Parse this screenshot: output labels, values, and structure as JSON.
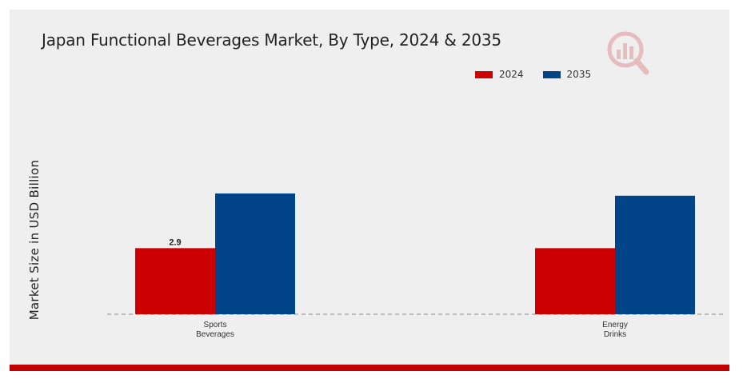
{
  "colors": {
    "panel_background": "#efefef",
    "accent_bar": "#c00000",
    "series_2024": "#cc0000",
    "series_2035": "#004488"
  },
  "logo": {
    "icon": "market-research-logo-icon"
  },
  "chart_data": {
    "type": "bar",
    "title": "Japan Functional Beverages Market, By Type, 2024 & 2035",
    "xlabel": "",
    "ylabel": "Market Size in USD Billion",
    "categories": [
      "Sports\nBeverages",
      "Energy\nDrinks"
    ],
    "series": [
      {
        "name": "2024",
        "color": "#cc0000",
        "values": [
          2.9,
          2.9
        ]
      },
      {
        "name": "2035",
        "color": "#004488",
        "values": [
          5.3,
          5.2
        ]
      }
    ],
    "data_labels": [
      {
        "series": 0,
        "category": 0,
        "text": "2.9"
      }
    ],
    "ylim": [
      0,
      8
    ],
    "grid": false,
    "baseline": "dashed",
    "legend_position": "top-right"
  }
}
